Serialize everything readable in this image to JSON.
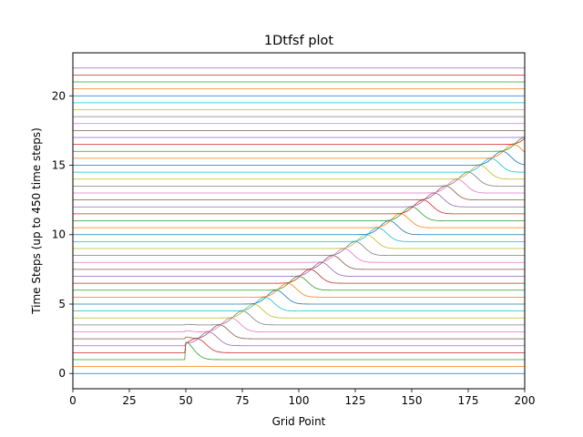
{
  "chart_data": {
    "type": "line",
    "title": "1Dtfsf plot",
    "xlabel": "Grid Point",
    "ylabel": "Time Steps (up to 450 time steps)",
    "xlim": [
      0,
      200
    ],
    "ylim": [
      -1.1,
      23.1
    ],
    "xticks": [
      0,
      25,
      50,
      75,
      100,
      125,
      150,
      175,
      200
    ],
    "yticks": [
      0,
      5,
      10,
      15,
      20
    ],
    "grid": false,
    "legend": "none",
    "grid_points": 200,
    "series_count": 45,
    "offset_per_series": 0.5,
    "pulse_source_grid_point": 50,
    "pulse_speed_grid_points_per_series": 5,
    "pulse_amplitude": 1.0,
    "colors": [
      "#1f77b4",
      "#ff7f0e",
      "#2ca02c",
      "#d62728",
      "#9467bd",
      "#8c564b",
      "#e377c2",
      "#7f7f7f",
      "#bcbd22",
      "#17becf"
    ]
  }
}
